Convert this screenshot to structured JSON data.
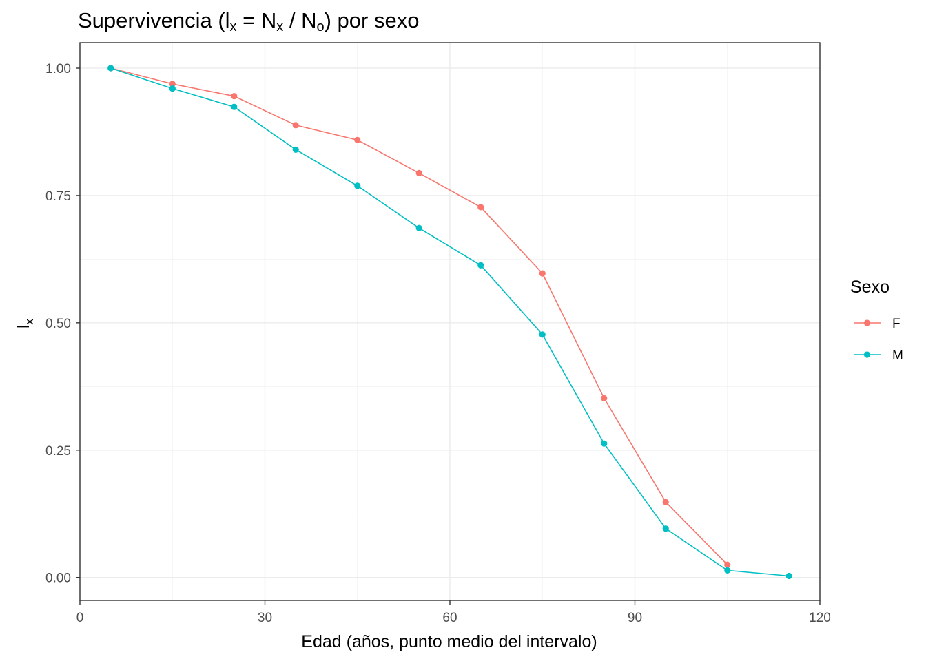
{
  "chart_data": {
    "type": "line",
    "title": "Supervivencia (l",
    "title_sub_x": "x",
    "title_mid": " = N",
    "title_sub_x2": "x",
    "title_mid2": " / N",
    "title_sub_o": "o",
    "title_end": ") por sexo",
    "xlabel": "Edad (años, punto medio del intervalo)",
    "ylabel_main": "l",
    "ylabel_sub": "x",
    "xlim": [
      0,
      120
    ],
    "ylim": [
      -0.045,
      1.05
    ],
    "x_ticks": [
      0,
      30,
      60,
      90,
      120
    ],
    "x_tick_labels": [
      "0",
      "30",
      "60",
      "90",
      "120"
    ],
    "y_ticks": [
      0,
      0.25,
      0.5,
      0.75,
      1.0
    ],
    "y_tick_labels": [
      "0.00",
      "0.25",
      "0.50",
      "0.75",
      "1.00"
    ],
    "grid": true,
    "legend": {
      "title": "Sexo",
      "placement": "right"
    },
    "series": [
      {
        "name": "F",
        "color": "#F8766D",
        "x": [
          5,
          15,
          25,
          35,
          45,
          55,
          65,
          75,
          85,
          95,
          105
        ],
        "y": [
          1.0,
          0.969,
          0.945,
          0.888,
          0.859,
          0.794,
          0.727,
          0.597,
          0.352,
          0.148,
          0.025
        ]
      },
      {
        "name": "M",
        "color": "#00BFC4",
        "x": [
          5,
          15,
          25,
          35,
          45,
          55,
          65,
          75,
          85,
          95,
          105,
          115
        ],
        "y": [
          1.0,
          0.96,
          0.924,
          0.84,
          0.769,
          0.686,
          0.613,
          0.477,
          0.263,
          0.096,
          0.014,
          0.003
        ]
      }
    ]
  }
}
